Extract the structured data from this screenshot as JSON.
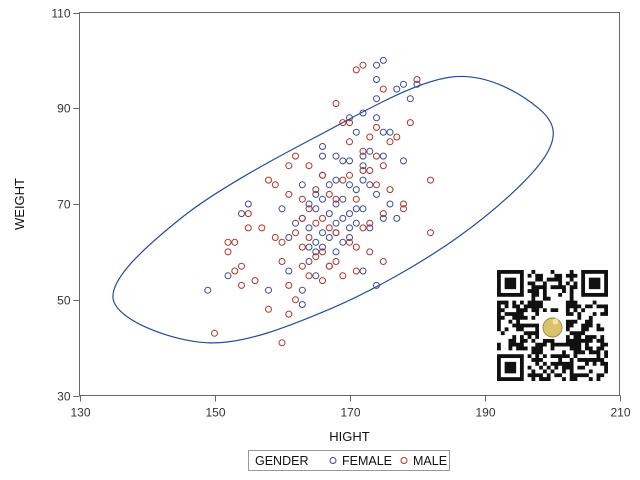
{
  "chart_data": {
    "type": "scatter",
    "title": "",
    "xlabel": "HIGHT",
    "ylabel": "WEIGHT",
    "xlim": [
      130,
      210
    ],
    "ylim": [
      30,
      110
    ],
    "x_ticks": [
      130,
      150,
      170,
      190,
      210
    ],
    "y_ticks": [
      30,
      50,
      70,
      90,
      110
    ],
    "x_tick_labels": [
      "130",
      "150",
      "170",
      "190",
      "210"
    ],
    "y_tick_labels": [
      "30",
      "50",
      "70",
      "90",
      "110"
    ],
    "grid": false,
    "legend": {
      "title": "GENDER",
      "placement": "bottom",
      "entries": [
        "FEMALE",
        "MALE"
      ]
    },
    "colors": {
      "FEMALE": "#3b4a9a",
      "MALE": "#b03428",
      "ellipse": "#1f4fa0"
    },
    "ellipse": {
      "label": "prediction ellipse",
      "center": [
        167,
        65
      ],
      "points": [
        [
          149,
          41
        ],
        [
          135,
          50
        ],
        [
          145,
          67
        ],
        [
          165,
          84
        ],
        [
          185,
          96.5
        ],
        [
          198,
          90
        ],
        [
          199,
          80
        ],
        [
          186,
          63
        ],
        [
          167,
          48
        ]
      ]
    },
    "series": [
      {
        "name": "FEMALE",
        "points": [
          [
            149,
            52
          ],
          [
            152,
            55
          ],
          [
            154,
            68
          ],
          [
            155,
            70
          ],
          [
            158,
            52
          ],
          [
            160,
            69
          ],
          [
            161,
            63
          ],
          [
            161,
            56
          ],
          [
            162,
            66
          ],
          [
            163,
            52
          ],
          [
            163,
            49
          ],
          [
            163,
            67
          ],
          [
            163,
            74
          ],
          [
            164,
            61
          ],
          [
            164,
            58
          ],
          [
            164,
            65
          ],
          [
            164,
            70
          ],
          [
            165,
            72
          ],
          [
            165,
            60
          ],
          [
            165,
            55
          ],
          [
            165,
            62
          ],
          [
            165,
            69
          ],
          [
            166,
            61
          ],
          [
            166,
            64
          ],
          [
            166,
            76
          ],
          [
            166,
            80
          ],
          [
            166,
            82
          ],
          [
            166,
            71
          ],
          [
            167,
            63
          ],
          [
            167,
            74
          ],
          [
            167,
            68
          ],
          [
            167,
            57
          ],
          [
            168,
            70
          ],
          [
            168,
            64
          ],
          [
            168,
            80
          ],
          [
            168,
            66
          ],
          [
            168,
            60
          ],
          [
            168,
            75
          ],
          [
            169,
            79
          ],
          [
            169,
            62
          ],
          [
            169,
            67
          ],
          [
            169,
            71
          ],
          [
            170,
            74
          ],
          [
            170,
            68
          ],
          [
            170,
            63
          ],
          [
            170,
            65
          ],
          [
            170,
            79
          ],
          [
            170,
            88
          ],
          [
            171,
            73
          ],
          [
            171,
            66
          ],
          [
            171,
            69
          ],
          [
            171,
            85
          ],
          [
            172,
            78
          ],
          [
            172,
            80
          ],
          [
            172,
            69
          ],
          [
            172,
            89
          ],
          [
            172,
            56
          ],
          [
            172,
            75
          ],
          [
            173,
            81
          ],
          [
            173,
            74
          ],
          [
            173,
            65
          ],
          [
            174,
            72
          ],
          [
            174,
            92
          ],
          [
            174,
            96
          ],
          [
            174,
            88
          ],
          [
            174,
            99
          ],
          [
            175,
            85
          ],
          [
            175,
            100
          ],
          [
            175,
            80
          ],
          [
            175,
            67
          ],
          [
            176,
            85
          ],
          [
            176,
            70
          ],
          [
            177,
            67
          ],
          [
            177,
            94
          ],
          [
            178,
            79
          ],
          [
            178,
            95
          ],
          [
            179,
            92
          ],
          [
            180,
            95
          ],
          [
            174,
            53
          ]
        ]
      },
      {
        "name": "MALE",
        "points": [
          [
            150,
            43
          ],
          [
            152,
            62
          ],
          [
            152,
            60
          ],
          [
            153,
            56
          ],
          [
            153,
            62
          ],
          [
            154,
            53
          ],
          [
            154,
            57
          ],
          [
            155,
            65
          ],
          [
            155,
            68
          ],
          [
            156,
            54
          ],
          [
            157,
            65
          ],
          [
            158,
            48
          ],
          [
            158,
            75
          ],
          [
            159,
            63
          ],
          [
            159,
            74
          ],
          [
            160,
            41
          ],
          [
            160,
            58
          ],
          [
            160,
            62
          ],
          [
            161,
            72
          ],
          [
            161,
            47
          ],
          [
            161,
            53
          ],
          [
            161,
            78
          ],
          [
            162,
            80
          ],
          [
            162,
            50
          ],
          [
            162,
            64
          ],
          [
            163,
            67
          ],
          [
            163,
            61
          ],
          [
            163,
            57
          ],
          [
            163,
            71
          ],
          [
            164,
            69
          ],
          [
            164,
            55
          ],
          [
            164,
            63
          ],
          [
            164,
            78
          ],
          [
            165,
            66
          ],
          [
            165,
            73
          ],
          [
            165,
            59
          ],
          [
            166,
            60
          ],
          [
            166,
            67
          ],
          [
            166,
            54
          ],
          [
            166,
            76
          ],
          [
            167,
            57
          ],
          [
            167,
            65
          ],
          [
            167,
            72
          ],
          [
            168,
            64
          ],
          [
            168,
            91
          ],
          [
            168,
            58
          ],
          [
            168,
            71
          ],
          [
            169,
            87
          ],
          [
            169,
            75
          ],
          [
            169,
            55
          ],
          [
            170,
            62
          ],
          [
            170,
            76
          ],
          [
            170,
            83
          ],
          [
            170,
            87
          ],
          [
            171,
            61
          ],
          [
            171,
            71
          ],
          [
            171,
            56
          ],
          [
            171,
            98
          ],
          [
            172,
            99
          ],
          [
            172,
            65
          ],
          [
            172,
            81
          ],
          [
            172,
            77
          ],
          [
            173,
            60
          ],
          [
            173,
            66
          ],
          [
            173,
            77
          ],
          [
            173,
            84
          ],
          [
            174,
            74
          ],
          [
            174,
            86
          ],
          [
            174,
            80
          ],
          [
            175,
            68
          ],
          [
            175,
            78
          ],
          [
            175,
            94
          ],
          [
            176,
            73
          ],
          [
            176,
            83
          ],
          [
            177,
            84
          ],
          [
            178,
            70
          ],
          [
            178,
            69
          ],
          [
            179,
            87
          ],
          [
            180,
            96
          ],
          [
            182,
            75
          ],
          [
            182,
            64
          ],
          [
            175,
            58
          ]
        ]
      }
    ]
  }
}
